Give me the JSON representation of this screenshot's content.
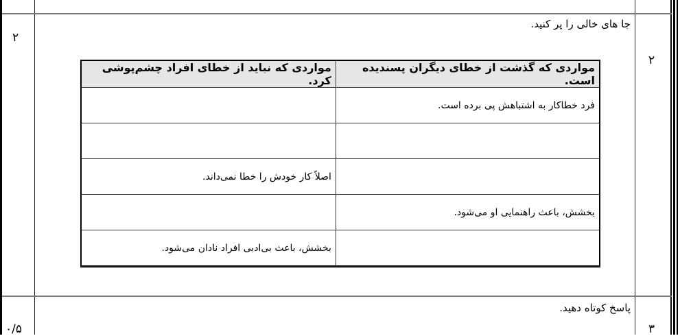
{
  "question2": {
    "number": "۲",
    "score": "۲",
    "instruction": "جا های خالی را پر کنید.",
    "table": {
      "headers": [
        "مواردی که گذشت از خطای دیگران پسندیده است.",
        "مواردی که نباید از خطای افراد چشم‌پوشی کرد."
      ],
      "rows": [
        [
          "فرد خطاکار به اشتباهش پی برده است.",
          ""
        ],
        [
          "",
          ""
        ],
        [
          "",
          "اصلاً کار خودش را خطا نمی‌داند."
        ],
        [
          "بخشش، باعث راهنمایی او می‌شود.",
          ""
        ],
        [
          "",
          "بخشش، باعث بی‌ادبی افراد نادان می‌شود."
        ]
      ]
    }
  },
  "question3": {
    "number": "۳",
    "score": "۰/۵",
    "instruction": "پاسخ کوتاه دهید."
  }
}
